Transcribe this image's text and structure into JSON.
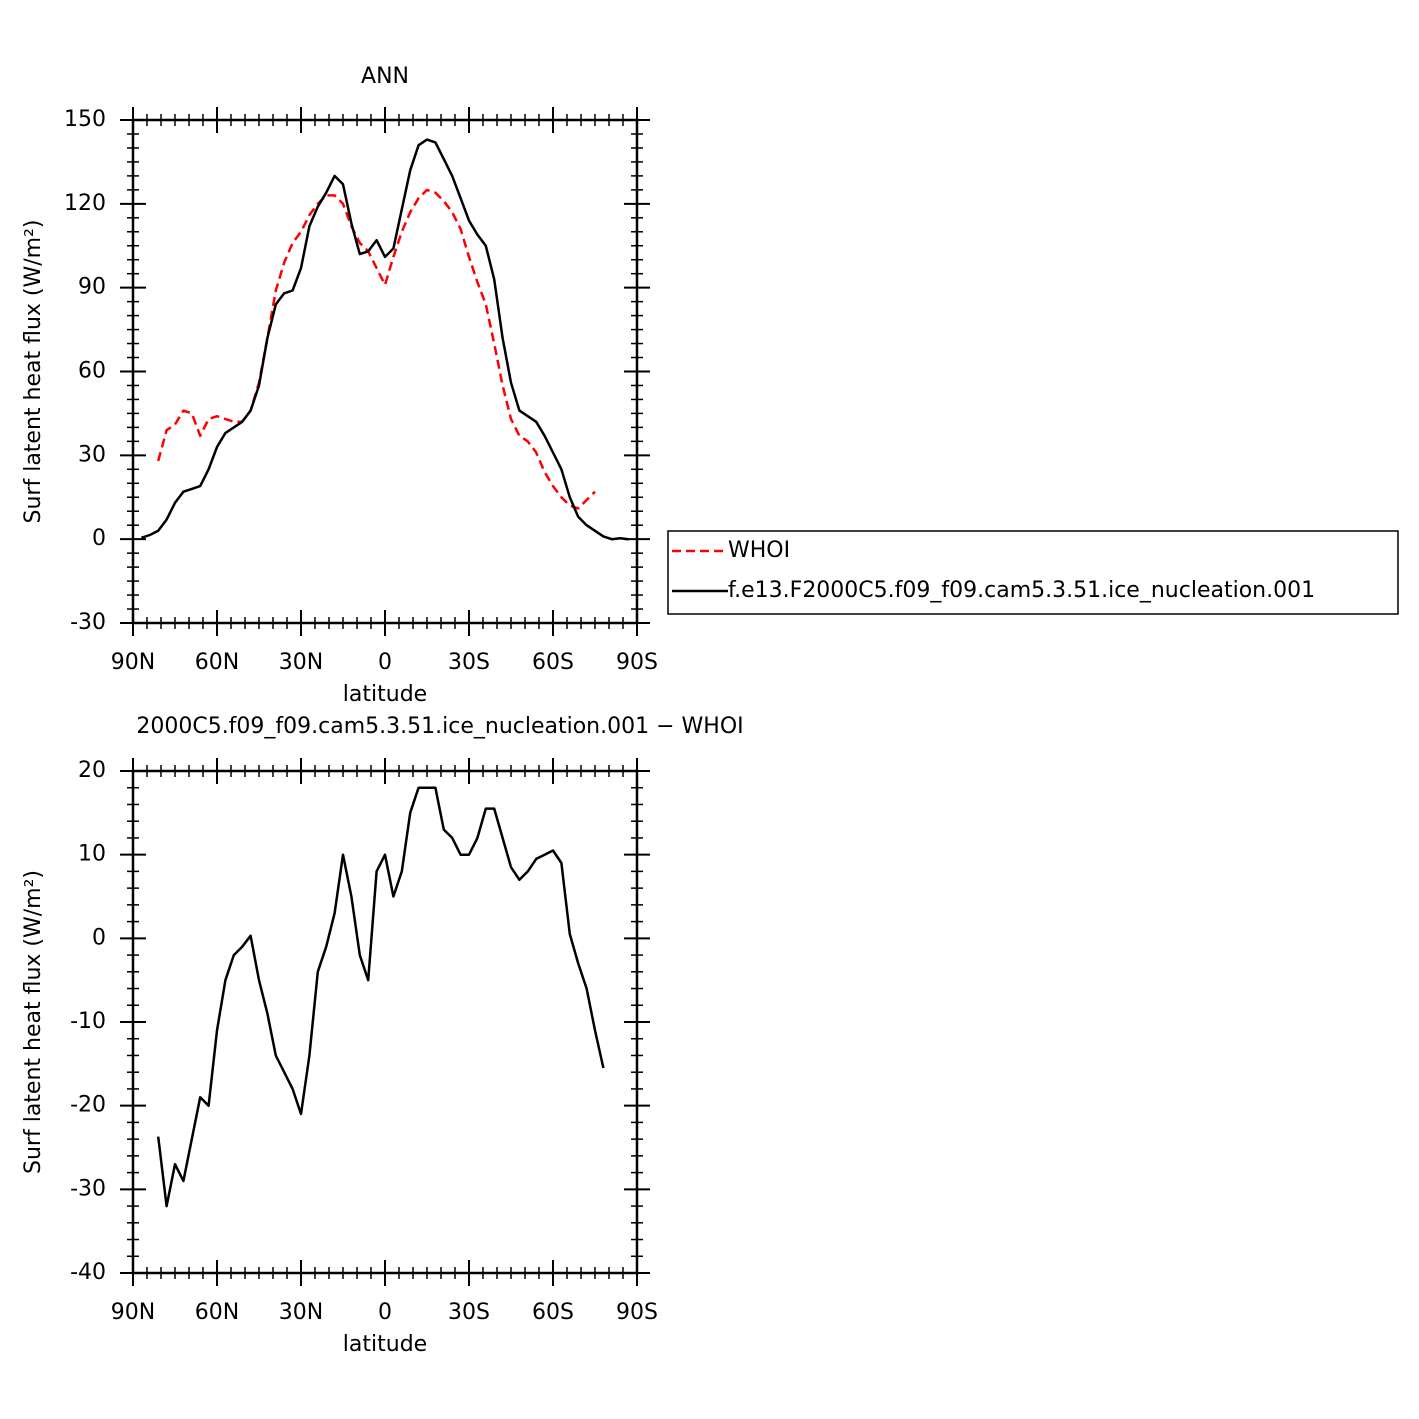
{
  "chart_data": [
    {
      "type": "line",
      "title": "ANN",
      "xlabel": "latitude",
      "ylabel": "Surf latent heat flux (W/m²)",
      "x": [
        87,
        84,
        81,
        78,
        75,
        72,
        69,
        66,
        63,
        60,
        57,
        54,
        51,
        48,
        45,
        42,
        39,
        36,
        33,
        30,
        27,
        24,
        21,
        18,
        15,
        12,
        9,
        6,
        3,
        0,
        -3,
        -6,
        -9,
        -12,
        -15,
        -18,
        -21,
        -24,
        -27,
        -30,
        -33,
        -36,
        -39,
        -42,
        -45,
        -48,
        -51,
        -54,
        -57,
        -60,
        -63,
        -66,
        -69,
        -72,
        -75,
        -78,
        -81,
        -84,
        -87
      ],
      "series": [
        {
          "name": "WHOI",
          "color": "#ff0000",
          "dashed": true,
          "values": [
            null,
            null,
            28,
            39,
            41,
            46,
            45,
            37,
            43,
            44,
            43,
            42,
            42,
            46,
            56,
            72,
            89,
            99,
            106,
            110,
            116,
            120,
            123,
            123,
            120,
            112,
            106,
            103,
            97,
            91,
            101,
            110,
            117,
            122,
            125,
            124,
            121,
            117,
            111,
            101,
            92,
            84,
            70,
            55,
            43,
            37,
            35,
            31,
            24,
            19,
            15,
            12,
            11,
            14,
            17,
            null,
            null,
            null,
            null
          ]
        },
        {
          "name": "f.e13.F2000C5.f09_f09.cam5.3.51.ice_nucleation.001",
          "color": "#000000",
          "dashed": false,
          "values": [
            0.5,
            1.5,
            3,
            7,
            13,
            17,
            18,
            19,
            25,
            33,
            38,
            40,
            42,
            46,
            55,
            72,
            84,
            88,
            89,
            97,
            112,
            119,
            124,
            130,
            127,
            113,
            102,
            103,
            107,
            101,
            104,
            118,
            132,
            141,
            143,
            142,
            136,
            130,
            122,
            114,
            109,
            105,
            93,
            72,
            56,
            46,
            44,
            42,
            37,
            31,
            25,
            15,
            8,
            5,
            3,
            1,
            0,
            0.3,
            0
          ]
        }
      ],
      "xlim": [
        90,
        -90
      ],
      "xticks": [
        {
          "value": 90,
          "label": "90N"
        },
        {
          "value": 60,
          "label": "60N"
        },
        {
          "value": 30,
          "label": "30N"
        },
        0,
        {
          "value": -30,
          "label": "30S"
        },
        {
          "value": -60,
          "label": "60S"
        },
        {
          "value": -90,
          "label": "90S"
        }
      ],
      "ylim": [
        -30,
        150
      ],
      "yticks": [
        150,
        120,
        90,
        60,
        30,
        0,
        -30
      ],
      "legend": "outside-right"
    },
    {
      "type": "line",
      "title": "2000C5.f09_f09.cam5.3.51.ice_nucleation.001 − WHOI",
      "xlabel": "latitude",
      "ylabel": "Surf latent heat flux (W/m²)",
      "x": [
        81,
        78,
        75,
        72,
        69,
        66,
        63,
        60,
        57,
        54,
        51,
        48,
        45,
        42,
        39,
        36,
        33,
        30,
        27,
        24,
        21,
        18,
        15,
        12,
        9,
        6,
        3,
        0,
        -3,
        -6,
        -9,
        -12,
        -15,
        -18,
        -21,
        -24,
        -27,
        -30,
        -33,
        -36,
        -39,
        -42,
        -45,
        -48,
        -51,
        -54,
        -57,
        -60,
        -63,
        -66,
        -69,
        -72,
        -75,
        -78
      ],
      "series": [
        {
          "color": "#000000",
          "dashed": false,
          "values": [
            -23.7,
            -32,
            -27,
            -29,
            -24,
            -19,
            -20,
            -11,
            -5,
            -2,
            -1,
            0.3,
            -5,
            -9,
            -14,
            -16,
            -18,
            -21,
            -14,
            -4,
            -1,
            3,
            10,
            5,
            -2,
            -5,
            8,
            10,
            5,
            8,
            15,
            18,
            18,
            18,
            13,
            12,
            10,
            10,
            12,
            15.5,
            15.5,
            12,
            8.5,
            7,
            8,
            9.5,
            10,
            10.5,
            9,
            0.5,
            -3,
            -6,
            -11,
            -15.5
          ]
        }
      ],
      "xlim": [
        90,
        -90
      ],
      "xticks": [
        {
          "value": 90,
          "label": "90N"
        },
        {
          "value": 60,
          "label": "60N"
        },
        {
          "value": 30,
          "label": "30N"
        },
        0,
        {
          "value": -30,
          "label": "30S"
        },
        {
          "value": -60,
          "label": "60S"
        },
        {
          "value": -90,
          "label": "90S"
        }
      ],
      "ylim": [
        -40,
        20
      ],
      "yticks": [
        20,
        10,
        0,
        -10,
        -20,
        -30,
        -40
      ]
    }
  ]
}
